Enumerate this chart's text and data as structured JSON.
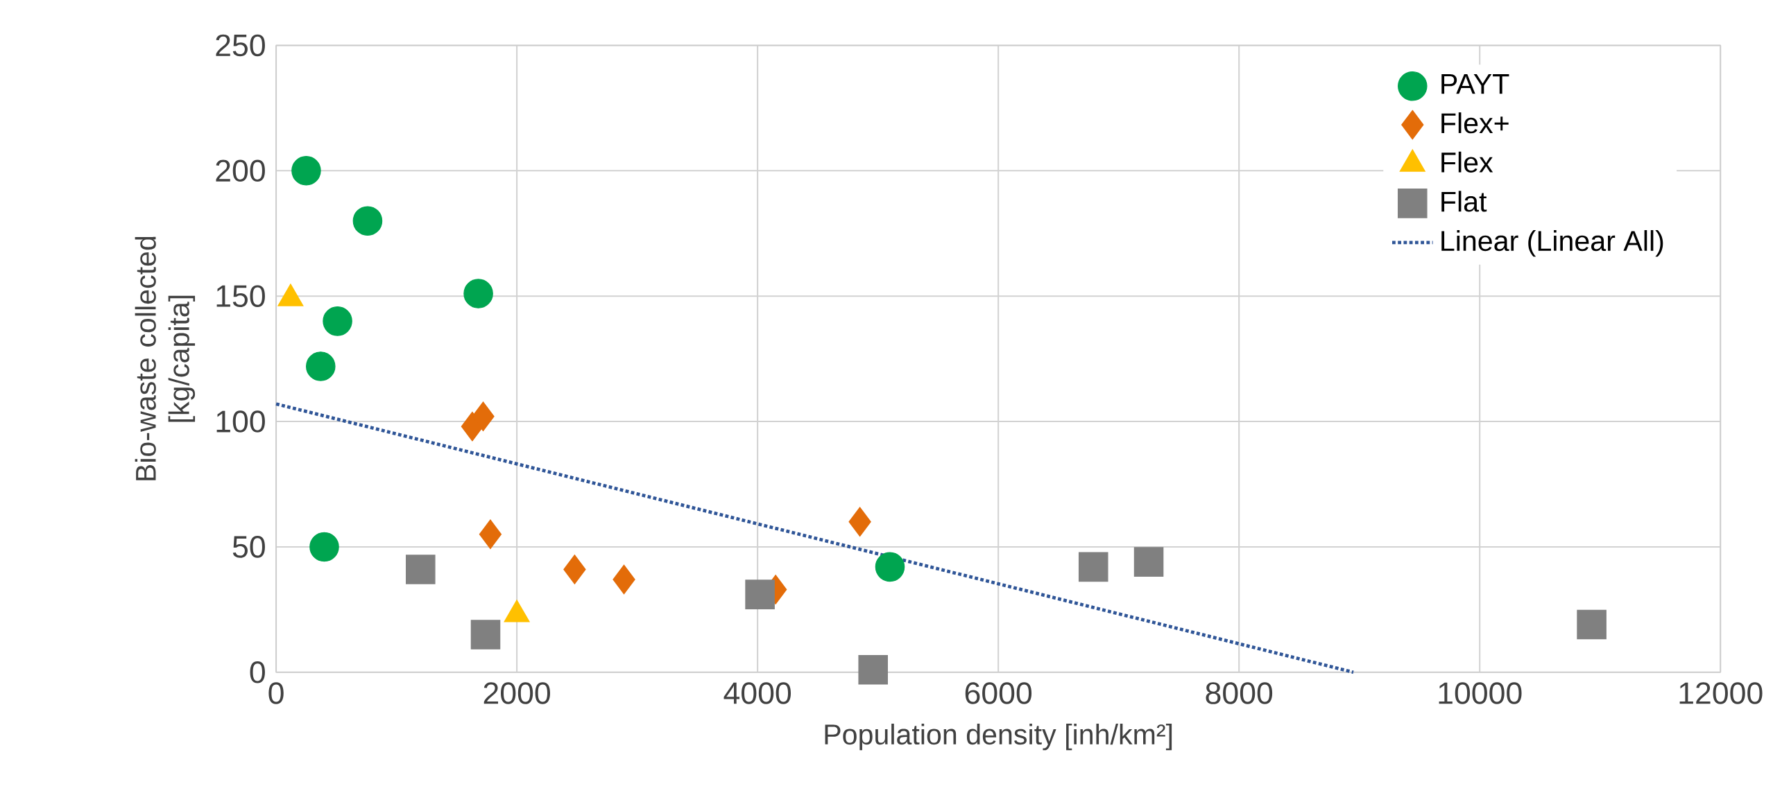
{
  "chart_data": {
    "type": "scatter",
    "xlabel": "Population density [inh/km²]",
    "ylabel": "Bio-waste collected [kg/capita]",
    "xlim": [
      0,
      12000
    ],
    "xticks": [
      0,
      2000,
      4000,
      6000,
      8000,
      10000,
      12000
    ],
    "ylim": [
      0,
      250
    ],
    "yticks": [
      0,
      50,
      100,
      150,
      200,
      250
    ],
    "grid": true,
    "legend": "top right",
    "series": [
      {
        "name": "PAYT",
        "color": "#00a550",
        "marker": "circle",
        "x": [
          250,
          760,
          1680,
          510,
          370,
          400,
          5100
        ],
        "values": [
          200,
          180,
          151,
          140,
          122,
          50,
          42
        ]
      },
      {
        "name": "Flex+",
        "color": "#e36c09",
        "marker": "diamond",
        "x": [
          1630,
          1720,
          1780,
          2480,
          2890,
          4150,
          4850
        ],
        "values": [
          98,
          102,
          55,
          41,
          37,
          33,
          60
        ]
      },
      {
        "name": "Flex",
        "color": "#ffc000",
        "marker": "triangle",
        "x": [
          120,
          2000
        ],
        "values": [
          149,
          23
        ]
      },
      {
        "name": "Flat",
        "color": "#808080",
        "marker": "square",
        "x": [
          1200,
          1740,
          4020,
          4960,
          6790,
          7250,
          10930
        ],
        "values": [
          41,
          15,
          31,
          1,
          42,
          44,
          19
        ]
      },
      {
        "name": "Linear (Linear All)",
        "type": "line",
        "color": "#2f5597",
        "marker": "none",
        "line_style": "dotted",
        "x": [
          0,
          8950
        ],
        "values": [
          107,
          0
        ]
      }
    ]
  }
}
